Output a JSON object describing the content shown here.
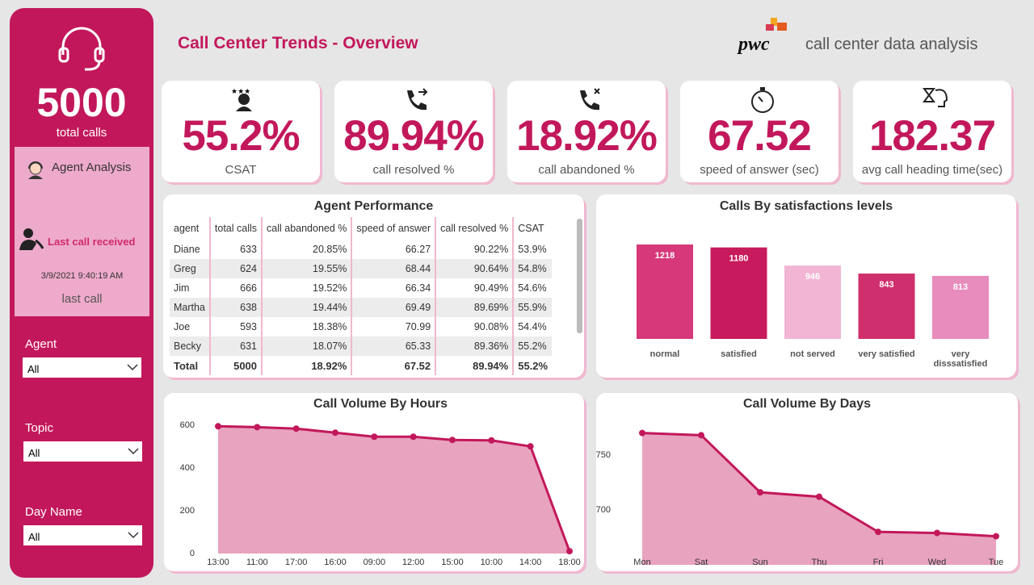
{
  "header": {
    "title": "Call Center Trends - Overview",
    "logo": "pwc",
    "subtitle": "call center data analysis"
  },
  "sidebar": {
    "total_calls": "5000",
    "total_calls_label": "total calls",
    "agent_analysis": "Agent Analysis",
    "last_call_received": "Last call received",
    "last_call_time": "3/9/2021 9:40:19 AM",
    "last_call_label": "last call",
    "filters": [
      {
        "label": "Agent",
        "value": "All"
      },
      {
        "label": "Topic",
        "value": "All"
      },
      {
        "label": "Day Name",
        "value": "All"
      }
    ]
  },
  "kpis": [
    {
      "value": "55.2%",
      "label": "CSAT"
    },
    {
      "value": "89.94%",
      "label": "call resolved %"
    },
    {
      "value": "18.92%",
      "label": "call abandoned %"
    },
    {
      "value": "67.52",
      "label": "speed of answer (sec)"
    },
    {
      "value": "182.37",
      "label": "avg call heading time(sec)"
    }
  ],
  "table": {
    "title": "Agent Performance",
    "columns": [
      "agent",
      "total calls",
      "call abandoned %",
      "speed of answer",
      "call resolved %",
      "CSAT"
    ],
    "rows": [
      [
        "Diane",
        "633",
        "20.85%",
        "66.27",
        "90.22%",
        "53.9%"
      ],
      [
        "Greg",
        "624",
        "19.55%",
        "68.44",
        "90.64%",
        "54.8%"
      ],
      [
        "Jim",
        "666",
        "19.52%",
        "66.34",
        "90.49%",
        "54.6%"
      ],
      [
        "Martha",
        "638",
        "19.44%",
        "69.49",
        "89.69%",
        "55.9%"
      ],
      [
        "Joe",
        "593",
        "18.38%",
        "70.99",
        "90.08%",
        "54.4%"
      ],
      [
        "Becky",
        "631",
        "18.07%",
        "65.33",
        "89.36%",
        "55.2%"
      ]
    ],
    "total": [
      "Total",
      "5000",
      "18.92%",
      "67.52",
      "89.94%",
      "55.2%"
    ]
  },
  "chart_data": [
    {
      "type": "bar",
      "title": "Calls By satisfactions levels",
      "categories": [
        "normal",
        "satisfied",
        "not served",
        "very satisfied",
        "very disssatisfied"
      ],
      "values": [
        1218,
        1180,
        946,
        843,
        813
      ],
      "colors": [
        "#d6387a",
        "#c81b5d",
        "#f2b5d3",
        "#d02f6e",
        "#e88bbd"
      ]
    },
    {
      "type": "area",
      "title": "Call Volume By Hours",
      "categories": [
        "13:00",
        "11:00",
        "17:00",
        "16:00",
        "09:00",
        "12:00",
        "15:00",
        "10:00",
        "14:00",
        "18:00"
      ],
      "values": [
        596,
        592,
        585,
        566,
        547,
        547,
        532,
        530,
        502,
        11
      ],
      "color": "#c2185b",
      "fill": "#e8a3bf",
      "ylim": [
        0,
        650
      ],
      "yticks": [
        0,
        200,
        400,
        600
      ]
    },
    {
      "type": "area",
      "title": "Call Volume By Days",
      "categories": [
        "Mon",
        "Sat",
        "Sun",
        "Thu",
        "Fri",
        "Wed",
        "Tue"
      ],
      "values": [
        770,
        768,
        716,
        712,
        680,
        679,
        676
      ],
      "color": "#c2185b",
      "fill": "#e8a3bf",
      "ylim": [
        650,
        780
      ],
      "yticks": [
        700,
        750
      ]
    }
  ]
}
